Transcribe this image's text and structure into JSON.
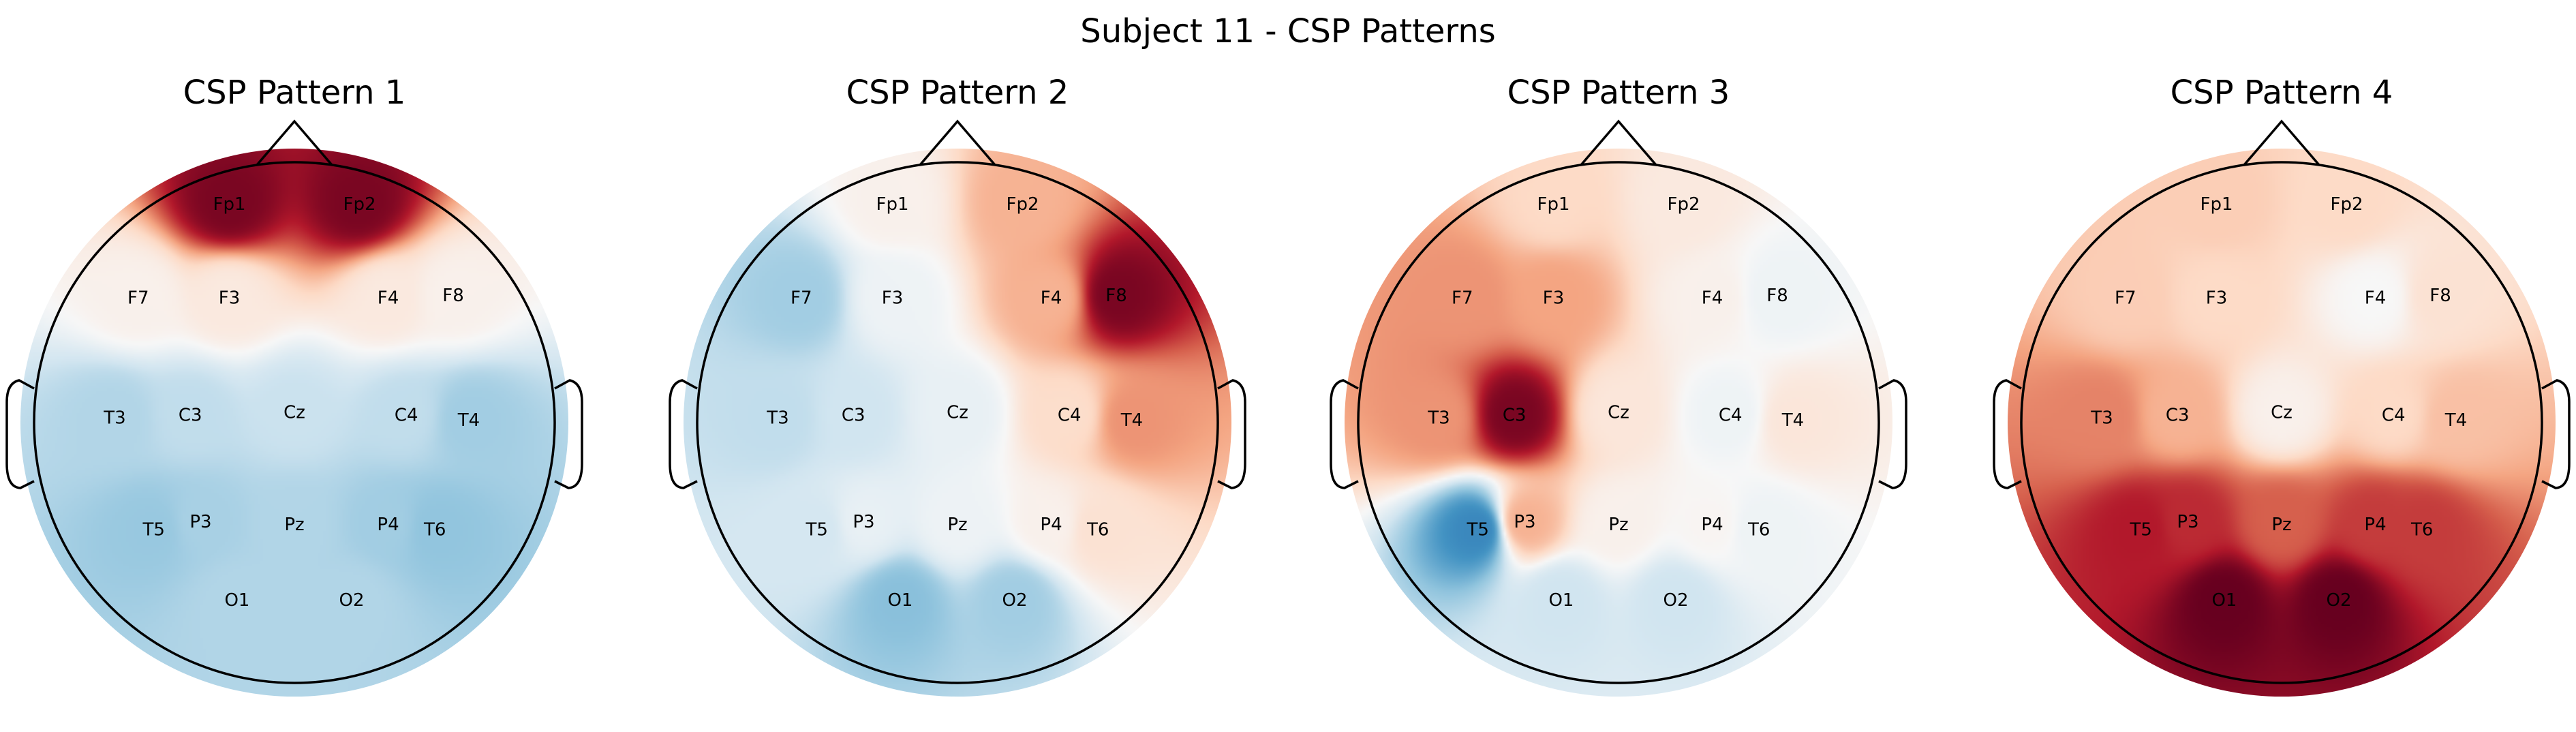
{
  "title": "Subject 11 - CSP Patterns",
  "colormap": {
    "negative": "#053061",
    "mid": "#f7f7f7",
    "positive": "#67001f",
    "stops": [
      "#053061",
      "#2166ac",
      "#4393c3",
      "#92c5de",
      "#d1e5f0",
      "#f7f7f7",
      "#fddbc7",
      "#f4a582",
      "#d6604d",
      "#b2182b",
      "#67001f"
    ]
  },
  "chart_data": [
    {
      "type": "heatmap",
      "title": "CSP Pattern 1",
      "electrodes": [
        {
          "name": "Fp1",
          "value": 0.95
        },
        {
          "name": "Fp2",
          "value": 0.95
        },
        {
          "name": "F7",
          "value": 0.05
        },
        {
          "name": "F3",
          "value": 0.1
        },
        {
          "name": "F4",
          "value": 0.1
        },
        {
          "name": "F8",
          "value": 0.05
        },
        {
          "name": "T3",
          "value": -0.3
        },
        {
          "name": "C3",
          "value": -0.25
        },
        {
          "name": "Cz",
          "value": -0.22
        },
        {
          "name": "C4",
          "value": -0.25
        },
        {
          "name": "T4",
          "value": -0.35
        },
        {
          "name": "T5",
          "value": -0.38
        },
        {
          "name": "P3",
          "value": -0.33
        },
        {
          "name": "Pz",
          "value": -0.3
        },
        {
          "name": "P4",
          "value": -0.35
        },
        {
          "name": "T6",
          "value": -0.4
        },
        {
          "name": "O1",
          "value": -0.3
        },
        {
          "name": "O2",
          "value": -0.3
        }
      ]
    },
    {
      "type": "heatmap",
      "title": "CSP Pattern 2",
      "electrodes": [
        {
          "name": "Fp1",
          "value": 0.05
        },
        {
          "name": "Fp2",
          "value": 0.35
        },
        {
          "name": "F7",
          "value": -0.35
        },
        {
          "name": "F3",
          "value": -0.05
        },
        {
          "name": "F4",
          "value": 0.35
        },
        {
          "name": "F8",
          "value": 0.95
        },
        {
          "name": "T3",
          "value": -0.25
        },
        {
          "name": "C3",
          "value": -0.2
        },
        {
          "name": "Cz",
          "value": -0.08
        },
        {
          "name": "C4",
          "value": 0.18
        },
        {
          "name": "T4",
          "value": 0.45
        },
        {
          "name": "T5",
          "value": -0.18
        },
        {
          "name": "P3",
          "value": -0.08
        },
        {
          "name": "Pz",
          "value": -0.05
        },
        {
          "name": "P4",
          "value": 0.05
        },
        {
          "name": "T6",
          "value": 0.15
        },
        {
          "name": "O1",
          "value": -0.42
        },
        {
          "name": "O2",
          "value": -0.35
        }
      ]
    },
    {
      "type": "heatmap",
      "title": "CSP Pattern 3",
      "electrodes": [
        {
          "name": "Fp1",
          "value": 0.2
        },
        {
          "name": "Fp2",
          "value": 0.1
        },
        {
          "name": "F7",
          "value": 0.45
        },
        {
          "name": "F3",
          "value": 0.4
        },
        {
          "name": "F4",
          "value": 0.05
        },
        {
          "name": "F8",
          "value": -0.05
        },
        {
          "name": "T3",
          "value": 0.45
        },
        {
          "name": "C3",
          "value": 0.95
        },
        {
          "name": "Cz",
          "value": 0.12
        },
        {
          "name": "C4",
          "value": -0.05
        },
        {
          "name": "T4",
          "value": 0.12
        },
        {
          "name": "T5",
          "value": -0.65
        },
        {
          "name": "P3",
          "value": 0.35
        },
        {
          "name": "Pz",
          "value": 0.05
        },
        {
          "name": "P4",
          "value": 0.02
        },
        {
          "name": "T6",
          "value": -0.05
        },
        {
          "name": "O1",
          "value": -0.2
        },
        {
          "name": "O2",
          "value": -0.2
        }
      ]
    },
    {
      "type": "heatmap",
      "title": "CSP Pattern 4",
      "electrodes": [
        {
          "name": "Fp1",
          "value": 0.25
        },
        {
          "name": "Fp2",
          "value": 0.2
        },
        {
          "name": "F7",
          "value": 0.25
        },
        {
          "name": "F3",
          "value": 0.2
        },
        {
          "name": "F4",
          "value": 0.0
        },
        {
          "name": "F8",
          "value": 0.15
        },
        {
          "name": "T3",
          "value": 0.5
        },
        {
          "name": "C3",
          "value": 0.35
        },
        {
          "name": "Cz",
          "value": 0.05
        },
        {
          "name": "C4",
          "value": 0.2
        },
        {
          "name": "T4",
          "value": 0.3
        },
        {
          "name": "T5",
          "value": 0.8
        },
        {
          "name": "P3",
          "value": 0.75
        },
        {
          "name": "Pz",
          "value": 0.6
        },
        {
          "name": "P4",
          "value": 0.7
        },
        {
          "name": "T6",
          "value": 0.7
        },
        {
          "name": "O1",
          "value": 1.0
        },
        {
          "name": "O2",
          "value": 1.0
        }
      ]
    }
  ]
}
